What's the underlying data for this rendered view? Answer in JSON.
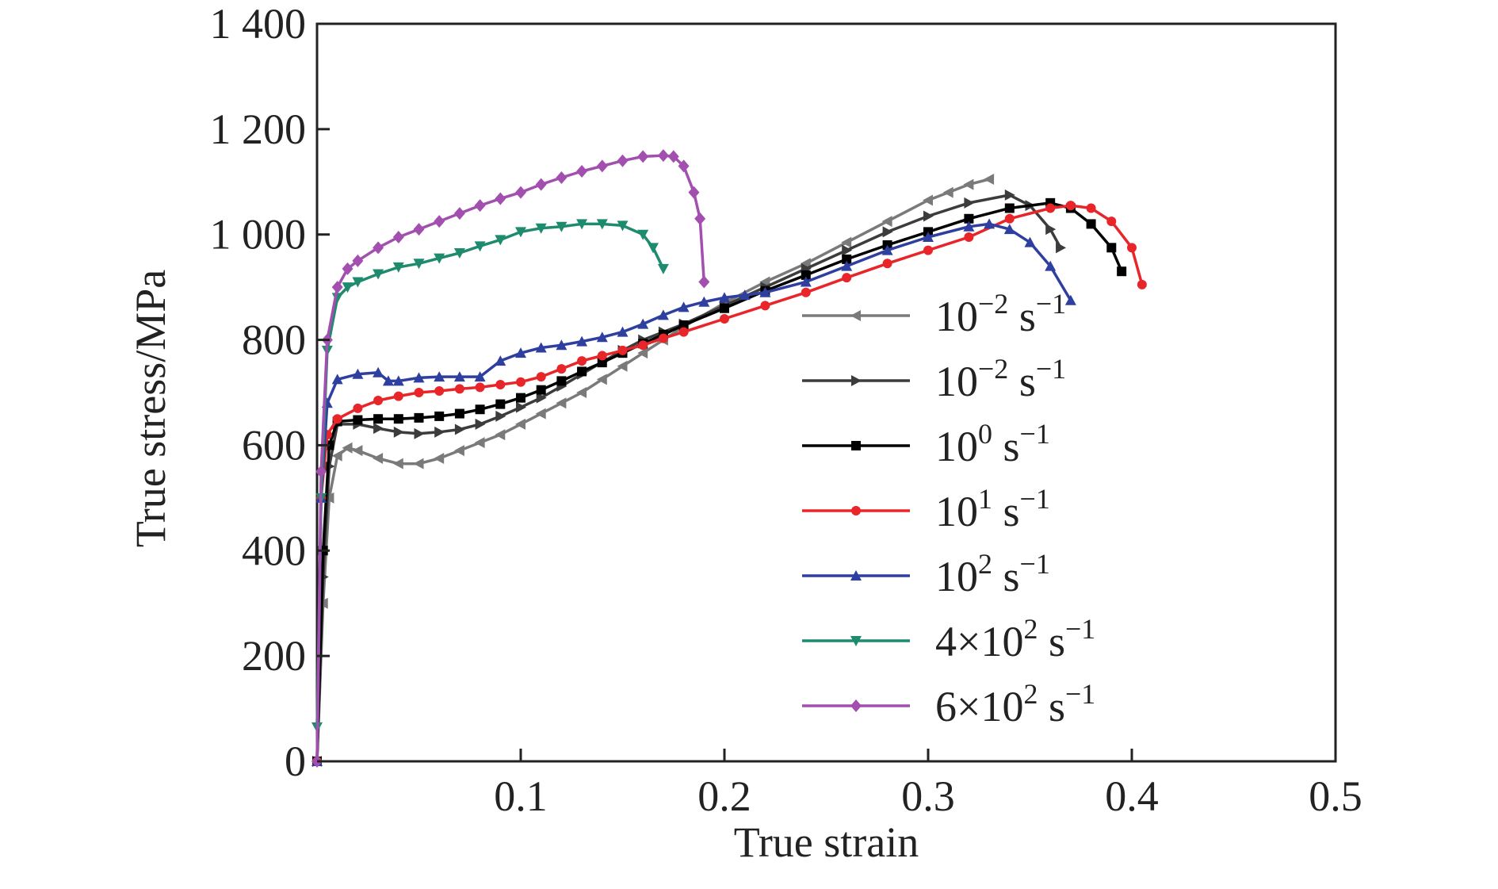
{
  "chart_data": {
    "type": "line",
    "title": "",
    "xlabel": "True strain",
    "ylabel": "True stress/MPa",
    "xlim": [
      0,
      0.5
    ],
    "ylim": [
      0,
      1400
    ],
    "xticks": [
      0.1,
      0.2,
      0.3,
      0.4,
      0.5
    ],
    "xtick_labels": [
      "0.1",
      "0.2",
      "0.3",
      "0.4",
      "0.5"
    ],
    "yticks": [
      0,
      200,
      400,
      600,
      800,
      1000,
      1200,
      1400
    ],
    "ytick_labels": [
      "0",
      "200",
      "400",
      "600",
      "800",
      "1 000",
      "1 200",
      "1 400"
    ],
    "grid": false,
    "legend_position": "right",
    "series": [
      {
        "name": "10⁻² s⁻¹",
        "legend_base": "10",
        "legend_exp": "−2",
        "legend_unit": "s",
        "legend_unit_exp": "−1",
        "color": "#7a7a7a",
        "marker": "triangle-left",
        "x": [
          0,
          0.003,
          0.006,
          0.01,
          0.015,
          0.02,
          0.03,
          0.04,
          0.05,
          0.06,
          0.07,
          0.08,
          0.09,
          0.1,
          0.11,
          0.12,
          0.13,
          0.14,
          0.15,
          0.16,
          0.17,
          0.18,
          0.2,
          0.22,
          0.24,
          0.26,
          0.28,
          0.3,
          0.31,
          0.32,
          0.33
        ],
        "y": [
          0,
          300,
          500,
          580,
          595,
          590,
          575,
          565,
          565,
          575,
          590,
          605,
          620,
          640,
          660,
          680,
          700,
          725,
          750,
          775,
          800,
          825,
          870,
          910,
          945,
          985,
          1025,
          1065,
          1080,
          1095,
          1105
        ]
      },
      {
        "name": "10⁻² s⁻¹",
        "legend_base": "10",
        "legend_exp": "−2",
        "legend_unit": "s",
        "legend_unit_exp": "−1",
        "color": "#3c3c3c",
        "marker": "triangle-right",
        "x": [
          0,
          0.003,
          0.006,
          0.01,
          0.02,
          0.03,
          0.04,
          0.05,
          0.06,
          0.07,
          0.08,
          0.09,
          0.1,
          0.11,
          0.12,
          0.13,
          0.14,
          0.15,
          0.16,
          0.17,
          0.18,
          0.2,
          0.22,
          0.24,
          0.26,
          0.28,
          0.3,
          0.32,
          0.34,
          0.35,
          0.36,
          0.365
        ],
        "y": [
          0,
          350,
          560,
          640,
          640,
          632,
          625,
          622,
          625,
          630,
          640,
          655,
          672,
          690,
          712,
          735,
          758,
          780,
          800,
          815,
          830,
          865,
          900,
          935,
          970,
          1005,
          1035,
          1060,
          1075,
          1055,
          1010,
          975
        ]
      },
      {
        "name": "10⁰ s⁻¹",
        "legend_base": "10",
        "legend_exp": "0",
        "legend_unit": "s",
        "legend_unit_exp": "−1",
        "color": "#000000",
        "marker": "square",
        "x": [
          0,
          0.003,
          0.006,
          0.01,
          0.02,
          0.03,
          0.04,
          0.05,
          0.06,
          0.07,
          0.08,
          0.09,
          0.1,
          0.11,
          0.12,
          0.13,
          0.14,
          0.15,
          0.16,
          0.17,
          0.18,
          0.2,
          0.22,
          0.24,
          0.26,
          0.28,
          0.3,
          0.32,
          0.34,
          0.36,
          0.37,
          0.38,
          0.39,
          0.395
        ],
        "y": [
          0,
          400,
          600,
          645,
          648,
          650,
          650,
          652,
          655,
          660,
          668,
          678,
          690,
          705,
          722,
          740,
          757,
          775,
          793,
          810,
          828,
          860,
          893,
          923,
          953,
          980,
          1005,
          1030,
          1050,
          1060,
          1050,
          1020,
          975,
          930
        ]
      },
      {
        "name": "10¹ s⁻¹",
        "legend_base": "10",
        "legend_exp": "1",
        "legend_unit": "s",
        "legend_unit_exp": "−1",
        "color": "#e8262a",
        "marker": "circle",
        "x": [
          0,
          0.002,
          0.005,
          0.01,
          0.02,
          0.03,
          0.04,
          0.05,
          0.06,
          0.07,
          0.08,
          0.09,
          0.1,
          0.11,
          0.12,
          0.13,
          0.14,
          0.15,
          0.16,
          0.17,
          0.18,
          0.2,
          0.22,
          0.24,
          0.26,
          0.28,
          0.3,
          0.32,
          0.34,
          0.36,
          0.37,
          0.38,
          0.39,
          0.4,
          0.405
        ],
        "y": [
          0,
          500,
          620,
          650,
          670,
          685,
          693,
          700,
          703,
          707,
          710,
          715,
          720,
          730,
          745,
          760,
          770,
          780,
          790,
          803,
          815,
          840,
          865,
          890,
          918,
          945,
          970,
          995,
          1030,
          1050,
          1055,
          1050,
          1025,
          975,
          905
        ]
      },
      {
        "name": "10² s⁻¹",
        "legend_base": "10",
        "legend_exp": "2",
        "legend_unit": "s",
        "legend_unit_exp": "−1",
        "color": "#2f3fa0",
        "marker": "triangle-up",
        "x": [
          0,
          0.002,
          0.005,
          0.01,
          0.02,
          0.03,
          0.035,
          0.04,
          0.05,
          0.06,
          0.07,
          0.08,
          0.09,
          0.1,
          0.11,
          0.12,
          0.13,
          0.14,
          0.15,
          0.16,
          0.17,
          0.18,
          0.19,
          0.2,
          0.21,
          0.22,
          0.24,
          0.26,
          0.28,
          0.3,
          0.32,
          0.33,
          0.34,
          0.35,
          0.36,
          0.37
        ],
        "y": [
          0,
          500,
          680,
          725,
          735,
          738,
          722,
          722,
          728,
          730,
          730,
          730,
          760,
          775,
          785,
          790,
          797,
          805,
          815,
          830,
          847,
          862,
          872,
          880,
          885,
          890,
          910,
          940,
          970,
          995,
          1015,
          1020,
          1010,
          985,
          940,
          875
        ]
      },
      {
        "name": "4×10² s⁻¹",
        "legend_base": "4×10",
        "legend_exp": "2",
        "legend_unit": "s",
        "legend_unit_exp": "−1",
        "color": "#1e8a6e",
        "marker": "triangle-down",
        "x": [
          0,
          0.002,
          0.005,
          0.01,
          0.015,
          0.02,
          0.03,
          0.04,
          0.05,
          0.06,
          0.07,
          0.08,
          0.09,
          0.1,
          0.11,
          0.12,
          0.13,
          0.14,
          0.15,
          0.16,
          0.165,
          0.17
        ],
        "y": [
          65,
          500,
          780,
          880,
          900,
          910,
          925,
          938,
          945,
          955,
          965,
          978,
          990,
          1005,
          1012,
          1015,
          1020,
          1020,
          1017,
          1000,
          975,
          935
        ]
      },
      {
        "name": "6×10² s⁻¹",
        "legend_base": "6×10",
        "legend_exp": "2",
        "legend_unit": "s",
        "legend_unit_exp": "−1",
        "color": "#a24fb0",
        "marker": "diamond",
        "x": [
          0,
          0.002,
          0.005,
          0.01,
          0.015,
          0.02,
          0.03,
          0.04,
          0.05,
          0.06,
          0.07,
          0.08,
          0.09,
          0.1,
          0.11,
          0.12,
          0.13,
          0.14,
          0.15,
          0.16,
          0.17,
          0.175,
          0.18,
          0.185,
          0.188,
          0.19
        ],
        "y": [
          0,
          550,
          800,
          900,
          935,
          950,
          975,
          995,
          1010,
          1025,
          1040,
          1055,
          1068,
          1080,
          1095,
          1108,
          1120,
          1130,
          1140,
          1148,
          1150,
          1148,
          1130,
          1080,
          1030,
          910
        ]
      }
    ]
  }
}
